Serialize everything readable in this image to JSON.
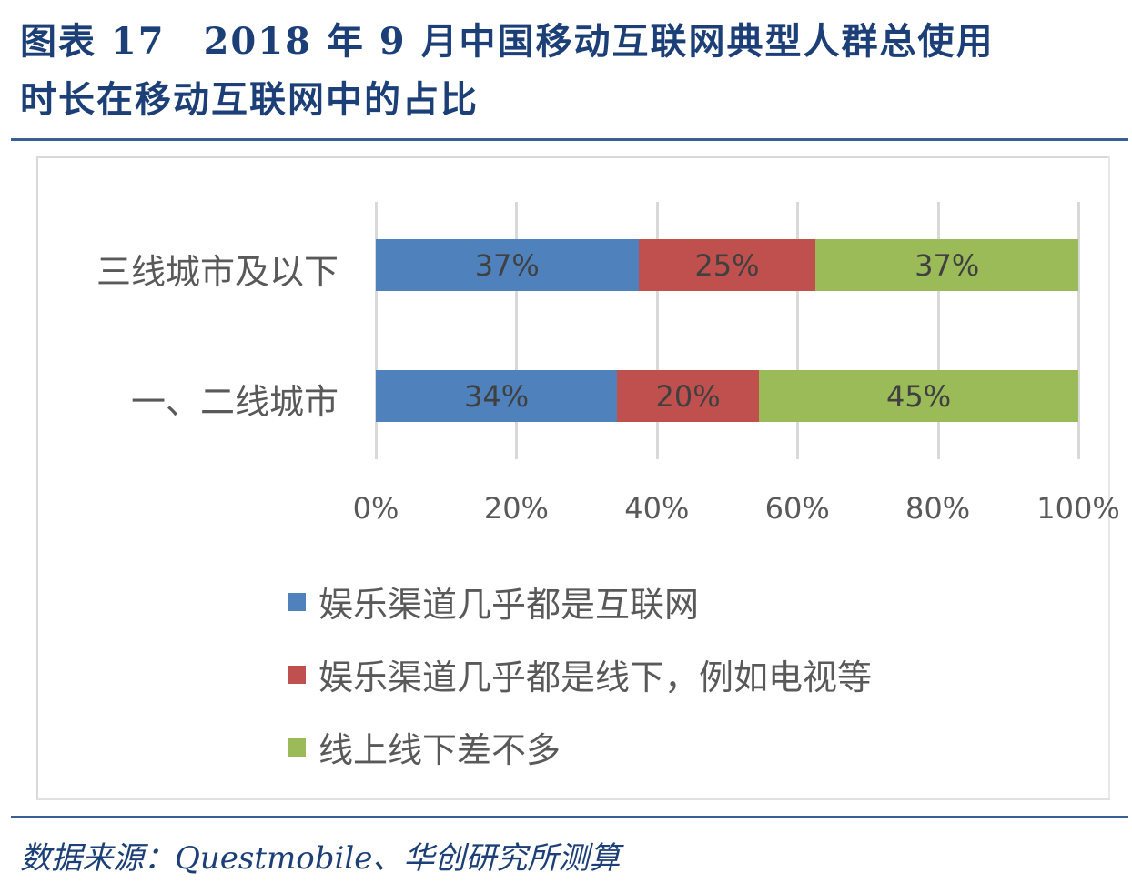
{
  "header": {
    "title_line1": "图表 17　2018 年 9 月中国移动互联网典型人群总使用",
    "title_line2": "时长在移动互联网中的占比"
  },
  "footer": {
    "source": "数据来源：Questmobile、华创研究所测算"
  },
  "colors": {
    "title": "#1c3f78",
    "rule": "#3c5f93",
    "series_internet": "#4f81bd",
    "series_offline": "#c0504d",
    "series_equal": "#9bbb59"
  },
  "chart_data": {
    "type": "bar",
    "orientation": "horizontal",
    "stacked": "percent",
    "title": "2018年9月中国移动互联网典型人群总使用时长在移动互联网中的占比",
    "categories": [
      "三线城市及以下",
      "一、二线城市"
    ],
    "series": [
      {
        "name": "娱乐渠道几乎都是互联网",
        "color": "#4f81bd",
        "values": [
          37,
          34
        ],
        "labels": [
          "37%",
          "34%"
        ]
      },
      {
        "name": "娱乐渠道几乎都是线下，例如电视等",
        "color": "#c0504d",
        "values": [
          25,
          20
        ],
        "labels": [
          "25%",
          "20%"
        ]
      },
      {
        "name": "线上线下差不多",
        "color": "#9bbb59",
        "values": [
          37,
          45
        ],
        "labels": [
          "37%",
          "45%"
        ]
      }
    ],
    "xlabel": "",
    "ylabel": "",
    "xlim": [
      0,
      100
    ],
    "x_ticks": [
      "0%",
      "20%",
      "40%",
      "60%",
      "80%",
      "100%"
    ],
    "grid": "vertical",
    "legend_position": "bottom",
    "source": "Questmobile、华创研究所测算"
  }
}
